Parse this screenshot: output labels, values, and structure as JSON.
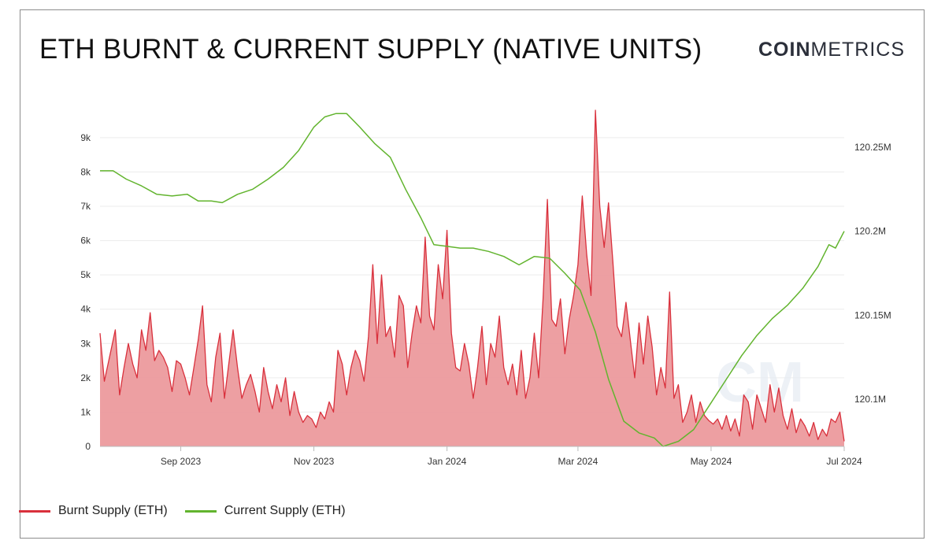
{
  "header": {
    "title": "ETH BURNT & CURRENT SUPPLY (NATIVE UNITS)",
    "logo_bold": "COIN",
    "logo_light": "METRICS"
  },
  "legend": [
    {
      "label": "Burnt Supply (ETH)",
      "color": "#d9303c"
    },
    {
      "label": "Current Supply (ETH)",
      "color": "#62b42e"
    }
  ],
  "chart_data": {
    "type": "area",
    "x_start": "2023-07-26",
    "x_end": "2024-07-01",
    "x_tick_labels": [
      "Sep 2023",
      "Nov 2023",
      "Jan 2024",
      "Mar 2024",
      "May 2024",
      "Jul 2024"
    ],
    "x_tick_dates": [
      "2023-09-01",
      "2023-11-01",
      "2024-01-01",
      "2024-03-01",
      "2024-05-01",
      "2024-07-01"
    ],
    "y_left": {
      "ticks": [
        0,
        1000,
        2000,
        3000,
        4000,
        5000,
        6000,
        7000,
        8000,
        9000
      ],
      "tick_labels": [
        "0",
        "1k",
        "2k",
        "3k",
        "4k",
        "5k",
        "6k",
        "7k",
        "8k",
        "9k"
      ],
      "range": [
        0,
        9800
      ]
    },
    "y_right": {
      "ticks": [
        120100000,
        120150000,
        120200000,
        120250000
      ],
      "tick_labels": [
        "120.1M",
        "120.15M",
        "120.2M",
        "120.25M"
      ],
      "range": [
        120072000,
        120272000
      ]
    },
    "grid": true,
    "series": [
      {
        "name": "Burnt Supply (ETH)",
        "axis": "left",
        "points": [
          [
            "2023-07-26",
            3300
          ],
          [
            "2023-07-28",
            1900
          ],
          [
            "2023-07-31",
            2800
          ],
          [
            "2023-08-02",
            3400
          ],
          [
            "2023-08-04",
            1500
          ],
          [
            "2023-08-06",
            2300
          ],
          [
            "2023-08-08",
            3000
          ],
          [
            "2023-08-10",
            2400
          ],
          [
            "2023-08-12",
            2000
          ],
          [
            "2023-08-14",
            3400
          ],
          [
            "2023-08-16",
            2800
          ],
          [
            "2023-08-18",
            3900
          ],
          [
            "2023-08-20",
            2500
          ],
          [
            "2023-08-22",
            2800
          ],
          [
            "2023-08-24",
            2600
          ],
          [
            "2023-08-26",
            2300
          ],
          [
            "2023-08-28",
            1600
          ],
          [
            "2023-08-30",
            2500
          ],
          [
            "2023-09-01",
            2400
          ],
          [
            "2023-09-03",
            2000
          ],
          [
            "2023-09-05",
            1500
          ],
          [
            "2023-09-07",
            2300
          ],
          [
            "2023-09-09",
            3100
          ],
          [
            "2023-09-11",
            4100
          ],
          [
            "2023-09-13",
            1800
          ],
          [
            "2023-09-15",
            1300
          ],
          [
            "2023-09-17",
            2600
          ],
          [
            "2023-09-19",
            3300
          ],
          [
            "2023-09-21",
            1400
          ],
          [
            "2023-09-23",
            2400
          ],
          [
            "2023-09-25",
            3400
          ],
          [
            "2023-09-27",
            2300
          ],
          [
            "2023-09-29",
            1400
          ],
          [
            "2023-10-01",
            1800
          ],
          [
            "2023-10-03",
            2100
          ],
          [
            "2023-10-05",
            1600
          ],
          [
            "2023-10-07",
            1000
          ],
          [
            "2023-10-09",
            2300
          ],
          [
            "2023-10-11",
            1600
          ],
          [
            "2023-10-13",
            1100
          ],
          [
            "2023-10-15",
            1800
          ],
          [
            "2023-10-17",
            1300
          ],
          [
            "2023-10-19",
            2000
          ],
          [
            "2023-10-21",
            900
          ],
          [
            "2023-10-23",
            1600
          ],
          [
            "2023-10-25",
            1000
          ],
          [
            "2023-10-27",
            700
          ],
          [
            "2023-10-29",
            900
          ],
          [
            "2023-10-31",
            800
          ],
          [
            "2023-11-02",
            550
          ],
          [
            "2023-11-04",
            1000
          ],
          [
            "2023-11-06",
            800
          ],
          [
            "2023-11-08",
            1300
          ],
          [
            "2023-11-10",
            1000
          ],
          [
            "2023-11-12",
            2800
          ],
          [
            "2023-11-14",
            2400
          ],
          [
            "2023-11-16",
            1500
          ],
          [
            "2023-11-18",
            2300
          ],
          [
            "2023-11-20",
            2800
          ],
          [
            "2023-11-22",
            2500
          ],
          [
            "2023-11-24",
            1900
          ],
          [
            "2023-11-26",
            3200
          ],
          [
            "2023-11-28",
            5300
          ],
          [
            "2023-11-30",
            3000
          ],
          [
            "2023-12-02",
            5000
          ],
          [
            "2023-12-04",
            3200
          ],
          [
            "2023-12-06",
            3500
          ],
          [
            "2023-12-08",
            2600
          ],
          [
            "2023-12-10",
            4400
          ],
          [
            "2023-12-12",
            4100
          ],
          [
            "2023-12-14",
            2300
          ],
          [
            "2023-12-16",
            3300
          ],
          [
            "2023-12-18",
            4100
          ],
          [
            "2023-12-20",
            3600
          ],
          [
            "2023-12-22",
            6100
          ],
          [
            "2023-12-24",
            3800
          ],
          [
            "2023-12-26",
            3400
          ],
          [
            "2023-12-28",
            5300
          ],
          [
            "2023-12-30",
            4300
          ],
          [
            "2024-01-01",
            6300
          ],
          [
            "2024-01-03",
            3300
          ],
          [
            "2024-01-05",
            2300
          ],
          [
            "2024-01-07",
            2200
          ],
          [
            "2024-01-09",
            3000
          ],
          [
            "2024-01-11",
            2400
          ],
          [
            "2024-01-13",
            1400
          ],
          [
            "2024-01-15",
            2300
          ],
          [
            "2024-01-17",
            3500
          ],
          [
            "2024-01-19",
            1800
          ],
          [
            "2024-01-21",
            3000
          ],
          [
            "2024-01-23",
            2600
          ],
          [
            "2024-01-25",
            3800
          ],
          [
            "2024-01-27",
            2300
          ],
          [
            "2024-01-29",
            1800
          ],
          [
            "2024-01-31",
            2400
          ],
          [
            "2024-02-02",
            1500
          ],
          [
            "2024-02-04",
            2800
          ],
          [
            "2024-02-06",
            1400
          ],
          [
            "2024-02-08",
            2000
          ],
          [
            "2024-02-10",
            3300
          ],
          [
            "2024-02-12",
            2000
          ],
          [
            "2024-02-14",
            4300
          ],
          [
            "2024-02-16",
            7200
          ],
          [
            "2024-02-18",
            3700
          ],
          [
            "2024-02-20",
            3500
          ],
          [
            "2024-02-22",
            4300
          ],
          [
            "2024-02-24",
            2700
          ],
          [
            "2024-02-26",
            3700
          ],
          [
            "2024-02-28",
            4400
          ],
          [
            "2024-03-01",
            5300
          ],
          [
            "2024-03-03",
            7300
          ],
          [
            "2024-03-05",
            5600
          ],
          [
            "2024-03-07",
            4400
          ],
          [
            "2024-03-09",
            9800
          ],
          [
            "2024-03-11",
            7000
          ],
          [
            "2024-03-13",
            5800
          ],
          [
            "2024-03-15",
            7100
          ],
          [
            "2024-03-17",
            5400
          ],
          [
            "2024-03-19",
            3500
          ],
          [
            "2024-03-21",
            3200
          ],
          [
            "2024-03-23",
            4200
          ],
          [
            "2024-03-25",
            3100
          ],
          [
            "2024-03-27",
            2000
          ],
          [
            "2024-03-29",
            3600
          ],
          [
            "2024-03-31",
            2400
          ],
          [
            "2024-04-02",
            3800
          ],
          [
            "2024-04-04",
            2900
          ],
          [
            "2024-04-06",
            1500
          ],
          [
            "2024-04-08",
            2300
          ],
          [
            "2024-04-10",
            1700
          ],
          [
            "2024-04-12",
            4500
          ],
          [
            "2024-04-14",
            1400
          ],
          [
            "2024-04-16",
            1800
          ],
          [
            "2024-04-18",
            700
          ],
          [
            "2024-04-20",
            1000
          ],
          [
            "2024-04-22",
            1500
          ],
          [
            "2024-04-24",
            700
          ],
          [
            "2024-04-26",
            1300
          ],
          [
            "2024-04-28",
            900
          ],
          [
            "2024-04-30",
            750
          ],
          [
            "2024-05-02",
            650
          ],
          [
            "2024-05-04",
            800
          ],
          [
            "2024-05-06",
            500
          ],
          [
            "2024-05-08",
            900
          ],
          [
            "2024-05-10",
            450
          ],
          [
            "2024-05-12",
            800
          ],
          [
            "2024-05-14",
            300
          ],
          [
            "2024-05-16",
            1500
          ],
          [
            "2024-05-18",
            1300
          ],
          [
            "2024-05-20",
            500
          ],
          [
            "2024-05-22",
            1500
          ],
          [
            "2024-05-24",
            1100
          ],
          [
            "2024-05-26",
            700
          ],
          [
            "2024-05-28",
            1800
          ],
          [
            "2024-05-30",
            1000
          ],
          [
            "2024-06-01",
            1700
          ],
          [
            "2024-06-03",
            900
          ],
          [
            "2024-06-05",
            500
          ],
          [
            "2024-06-07",
            1100
          ],
          [
            "2024-06-09",
            400
          ],
          [
            "2024-06-11",
            800
          ],
          [
            "2024-06-13",
            600
          ],
          [
            "2024-06-15",
            300
          ],
          [
            "2024-06-17",
            700
          ],
          [
            "2024-06-19",
            200
          ],
          [
            "2024-06-21",
            500
          ],
          [
            "2024-06-23",
            300
          ],
          [
            "2024-06-25",
            800
          ],
          [
            "2024-06-27",
            700
          ],
          [
            "2024-06-29",
            1000
          ],
          [
            "2024-07-01",
            150
          ]
        ]
      },
      {
        "name": "Current Supply (ETH)",
        "axis": "right",
        "points": [
          [
            "2023-07-26",
            120236000
          ],
          [
            "2023-08-01",
            120236000
          ],
          [
            "2023-08-07",
            120231000
          ],
          [
            "2023-08-14",
            120227000
          ],
          [
            "2023-08-21",
            120222000
          ],
          [
            "2023-08-28",
            120221000
          ],
          [
            "2023-09-04",
            120222000
          ],
          [
            "2023-09-09",
            120218000
          ],
          [
            "2023-09-15",
            120218000
          ],
          [
            "2023-09-20",
            120217000
          ],
          [
            "2023-09-27",
            120222000
          ],
          [
            "2023-10-04",
            120225000
          ],
          [
            "2023-10-11",
            120231000
          ],
          [
            "2023-10-18",
            120238000
          ],
          [
            "2023-10-25",
            120248000
          ],
          [
            "2023-11-01",
            120262000
          ],
          [
            "2023-11-06",
            120268000
          ],
          [
            "2023-11-11",
            120270000
          ],
          [
            "2023-11-16",
            120270000
          ],
          [
            "2023-11-22",
            120262000
          ],
          [
            "2023-11-29",
            120252000
          ],
          [
            "2023-12-06",
            120244000
          ],
          [
            "2023-12-13",
            120225000
          ],
          [
            "2023-12-20",
            120208000
          ],
          [
            "2023-12-26",
            120192000
          ],
          [
            "2024-01-01",
            120191000
          ],
          [
            "2024-01-07",
            120190000
          ],
          [
            "2024-01-13",
            120190000
          ],
          [
            "2024-01-20",
            120188000
          ],
          [
            "2024-01-27",
            120185000
          ],
          [
            "2024-02-03",
            120180000
          ],
          [
            "2024-02-10",
            120185000
          ],
          [
            "2024-02-17",
            120184000
          ],
          [
            "2024-02-24",
            120175000
          ],
          [
            "2024-03-02",
            120165000
          ],
          [
            "2024-03-09",
            120140000
          ],
          [
            "2024-03-15",
            120112000
          ],
          [
            "2024-03-22",
            120087000
          ],
          [
            "2024-03-29",
            120080000
          ],
          [
            "2024-04-05",
            120077000
          ],
          [
            "2024-04-09",
            120072000
          ],
          [
            "2024-04-16",
            120075000
          ],
          [
            "2024-04-23",
            120082000
          ],
          [
            "2024-04-30",
            120096000
          ],
          [
            "2024-05-08",
            120112000
          ],
          [
            "2024-05-15",
            120126000
          ],
          [
            "2024-05-22",
            120138000
          ],
          [
            "2024-05-29",
            120148000
          ],
          [
            "2024-06-05",
            120156000
          ],
          [
            "2024-06-12",
            120166000
          ],
          [
            "2024-06-19",
            120179000
          ],
          [
            "2024-06-24",
            120192000
          ],
          [
            "2024-06-27",
            120190000
          ],
          [
            "2024-07-01",
            120200000
          ]
        ]
      }
    ]
  }
}
